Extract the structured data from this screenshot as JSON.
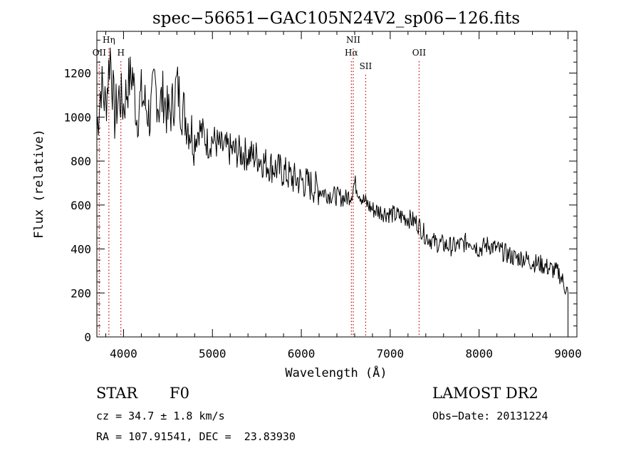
{
  "chart_data": {
    "type": "line",
    "title": "spec−56651−GAC105N24V2_sp06−126.fits",
    "xlabel": "Wavelength (Å)",
    "ylabel": "Flux (relative)",
    "xlim": [
      3700,
      9100
    ],
    "ylim": [
      0,
      1390
    ],
    "xticks": [
      4000,
      5000,
      6000,
      7000,
      8000,
      9000
    ],
    "yticks": [
      0,
      200,
      400,
      600,
      800,
      1000,
      1200
    ],
    "grid": false,
    "line_color": "#000000",
    "marker_color": "#cc0000",
    "emission_lines": [
      {
        "label": "Hη",
        "wavelength": 3835,
        "row": 0
      },
      {
        "label": "OII",
        "wavelength": 3727,
        "row": 1
      },
      {
        "label": "H",
        "wavelength": 3970,
        "row": 1
      },
      {
        "label": "NII",
        "wavelength": 6584,
        "row": 0
      },
      {
        "label": "Hα",
        "wavelength": 6563,
        "row": 1
      },
      {
        "label": "OII",
        "wavelength": 7325,
        "row": 1
      },
      {
        "label": "SII",
        "wavelength": 6724,
        "row": 2
      }
    ],
    "series": [
      {
        "x": [
          3700,
          3750,
          3800,
          3850,
          3900,
          3950,
          4000,
          4050,
          4100,
          4150,
          4200,
          4250,
          4300,
          4350,
          4400,
          4450,
          4500,
          4550,
          4600,
          4650,
          4700,
          4750,
          4800,
          4850,
          4900,
          4950,
          5000,
          5100,
          5200,
          5300,
          5400,
          5500,
          5600,
          5700,
          5800,
          5900,
          6000,
          6100,
          6200,
          6300,
          6400,
          6500,
          6563,
          6600,
          6700,
          6800,
          6900,
          7000,
          7100,
          7200,
          7300,
          7400,
          7500,
          7600,
          7700,
          7800,
          7900,
          8000,
          8100,
          8200,
          8300,
          8400,
          8500,
          8600,
          8700,
          8800,
          8900,
          9000
        ],
        "values": [
          950,
          1150,
          1050,
          1300,
          1000,
          1100,
          1050,
          1150,
          1200,
          1000,
          1100,
          1050,
          1000,
          1150,
          1050,
          1100,
          1000,
          1050,
          1150,
          1050,
          1000,
          950,
          900,
          950,
          920,
          880,
          900,
          860,
          850,
          840,
          830,
          820,
          790,
          770,
          750,
          720,
          710,
          690,
          670,
          650,
          640,
          630,
          650,
          700,
          620,
          580,
          570,
          560,
          550,
          540,
          520,
          460,
          430,
          420,
          410,
          420,
          440,
          400,
          420,
          400,
          380,
          360,
          360,
          340,
          330,
          310,
          290,
          200
        ]
      }
    ]
  },
  "footer": {
    "object_class": "STAR",
    "subclass": "F0",
    "survey": "LAMOST DR2",
    "redshift_line": "cz = 34.7 ± 1.8 km/s",
    "obs_date_line": "Obs−Date: 20131224",
    "coords_line": "RA = 107.91541, DEC =  23.83930"
  }
}
